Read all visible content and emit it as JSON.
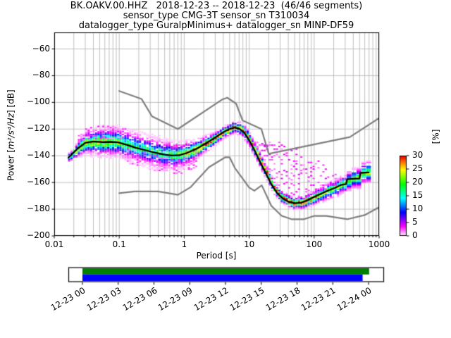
{
  "title": {
    "line1": "BK.OAKV.00.HHZ   2018-12-23 -- 2018-12-23  (46/46 segments)",
    "line2": "sensor_type CMG-3T sensor_sn T310034",
    "line3": "datalogger_type GuralpMinimus+ datalogger_sn MINP-DF59"
  },
  "axes": {
    "x": {
      "label": "Period [s]",
      "scale": "log",
      "range": [
        0.01,
        1000
      ],
      "tick_values": [
        0.01,
        0.1,
        1,
        10,
        100,
        1000
      ],
      "tick_labels": [
        "0.01",
        "0.1",
        "1",
        "10",
        "100",
        "1000"
      ]
    },
    "y": {
      "label_prefix": "Power [",
      "label_math": "m²/s⁴/Hz",
      "label_suffix": "] [dB]",
      "range": [
        -200,
        -48
      ],
      "tick_values": [
        -60,
        -80,
        -100,
        -120,
        -140,
        -160,
        -180,
        -200
      ],
      "tick_labels": [
        "−60",
        "−80",
        "−100",
        "−120",
        "−140",
        "−160",
        "−180",
        "−200"
      ]
    }
  },
  "colorbar": {
    "label": "[%]",
    "range": [
      0,
      30
    ],
    "tick_values": [
      0,
      5,
      10,
      15,
      20,
      25,
      30
    ],
    "tick_labels": [
      "0",
      "5",
      "10",
      "15",
      "20",
      "25",
      "30"
    ],
    "colormap": "pqlx white-magenta-blue-cyan-green-yellow-orange-red"
  },
  "timeline": {
    "tick_hours": [
      0,
      3,
      6,
      9,
      12,
      15,
      18,
      21,
      24
    ],
    "tick_labels": [
      "12-23 00",
      "12-23 03",
      "12-23 06",
      "12-23 09",
      "12-23 12",
      "12-23 15",
      "12-23 18",
      "12-23 21",
      "12-24 00"
    ],
    "coverage_bars": [
      {
        "name": "data-coverage",
        "color": "#008000",
        "start_hour": 0,
        "end_hour": 24.05
      },
      {
        "name": "psd-coverage",
        "color": "#0000ff",
        "start_hour": 0,
        "end_hour": 23.5
      }
    ]
  },
  "colors": {
    "background": "#ffffff",
    "grid": "#b9b9b9",
    "noise_model": "#7f7f7f",
    "mode_line": "#000000",
    "frame": "#000000",
    "coverage_green": "#008000",
    "coverage_blue": "#0000ff"
  },
  "chart_data": {
    "type": "heatmap",
    "title": "BK.OAKV.00.HHZ PPSD probabilistic power spectral density, 2018-12-23, 46/46 segments",
    "xlabel": "Period [s]",
    "ylabel": "Power [m2/s4/Hz] [dB]",
    "xlim": [
      0.01,
      1000
    ],
    "ylim": [
      -200,
      -48
    ],
    "grid": true,
    "colorbar_label": "[%]",
    "colorbar_range": [
      0,
      30
    ],
    "mode_curve": {
      "period_s": [
        0.0165,
        0.019,
        0.023,
        0.03,
        0.04,
        0.055,
        0.075,
        0.095,
        0.13,
        0.18,
        0.25,
        0.35,
        0.5,
        0.65,
        0.85,
        1.1,
        1.6,
        2.2,
        3,
        4,
        5,
        6,
        7,
        8.5,
        10,
        12,
        15,
        18,
        22,
        27,
        33,
        40,
        50,
        62,
        80,
        100,
        130,
        165,
        210,
        260,
        310,
        322,
        500,
        515,
        690
      ],
      "power_db": [
        -141.5,
        -138.5,
        -134.5,
        -130.3,
        -129.3,
        -129.8,
        -129.6,
        -129.9,
        -131.8,
        -134,
        -135.8,
        -137.6,
        -139.2,
        -139.8,
        -139.6,
        -137.9,
        -134.4,
        -130.5,
        -126.3,
        -122.3,
        -119.9,
        -118.9,
        -119.6,
        -123,
        -128.5,
        -135.5,
        -145.5,
        -153,
        -161.5,
        -168,
        -172,
        -174.3,
        -175.5,
        -175.2,
        -173.2,
        -170.8,
        -168.2,
        -166,
        -164,
        -161.8,
        -161.2,
        -157.5,
        -157.0,
        -152.8,
        -152.5
      ]
    },
    "noise_models": {
      "nhnm": {
        "period_s": [
          0.1,
          0.22,
          0.32,
          0.8,
          3.8,
          4.6,
          6.3,
          7.9,
          15.4,
          20,
          354.8,
          1000
        ],
        "power_db": [
          -91.5,
          -97.4,
          -110.5,
          -120,
          -98,
          -96.5,
          -101,
          -113.5,
          -120,
          -138.5,
          -126,
          -111.8
        ]
      },
      "nlnm": {
        "period_s": [
          0.1,
          0.17,
          0.4,
          0.8,
          1.24,
          2.4,
          4.3,
          5,
          6,
          10,
          12,
          15.6,
          21.9,
          31.6,
          45,
          70,
          101,
          154,
          328,
          600,
          1000
        ],
        "power_db": [
          -168,
          -166.7,
          -166.7,
          -169.2,
          -163.7,
          -148.6,
          -141.1,
          -141.1,
          -149,
          -163.8,
          -166.2,
          -162.1,
          -177.5,
          -185,
          -187.5,
          -187.5,
          -185,
          -185,
          -187.5,
          -184.4,
          -178.5
        ]
      }
    },
    "histogram_envelope": {
      "period_s": [
        0.0165,
        0.02,
        0.03,
        0.05,
        0.09,
        0.15,
        0.3,
        0.6,
        1.0,
        1.6,
        2.5,
        4,
        6,
        8,
        12,
        18,
        30,
        50,
        80,
        120,
        200,
        300,
        400,
        550,
        690
      ],
      "sigma_db": [
        1.2,
        1.8,
        3.2,
        3.8,
        3.8,
        4.0,
        4.2,
        3.8,
        3.2,
        2.6,
        2.0,
        1.7,
        1.7,
        2.0,
        2.2,
        2.0,
        1.7,
        1.7,
        1.9,
        2.2,
        2.4,
        2.6,
        2.8,
        3.0,
        3.0
      ],
      "max_halfwidth_db": [
        3,
        5,
        10,
        12,
        12,
        12,
        13,
        12,
        10,
        8,
        6,
        5,
        5,
        6,
        6,
        6,
        5,
        5,
        5,
        6,
        7,
        7,
        8,
        8,
        8
      ],
      "peak_percent": [
        20,
        21,
        21,
        21,
        20,
        15,
        15,
        16,
        22,
        26,
        27,
        26,
        26,
        25,
        24,
        27,
        29,
        29,
        27,
        20,
        18,
        18,
        20,
        20,
        20
      ]
    },
    "upper_tail": {
      "period_s": [
        8,
        12,
        16,
        22,
        30,
        50,
        70,
        100,
        150,
        220,
        300,
        380
      ],
      "height_db": [
        0,
        14,
        26,
        38,
        42,
        40,
        34,
        27,
        20,
        12,
        6,
        0
      ]
    }
  }
}
